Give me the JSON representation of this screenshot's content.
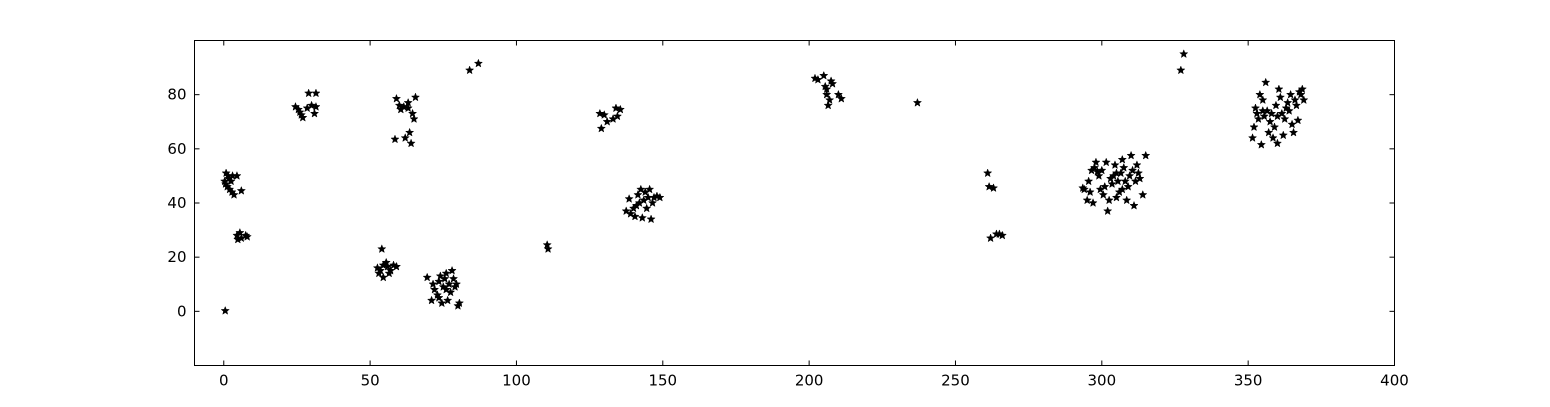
{
  "chart_data": {
    "type": "scatter",
    "title": "",
    "xlabel": "",
    "ylabel": "",
    "xlim": [
      -10,
      400
    ],
    "ylim": [
      -20,
      100
    ],
    "grid": false,
    "marker": "star",
    "marker_color": "#000000",
    "x_ticks": [
      0,
      50,
      100,
      150,
      200,
      250,
      300,
      350,
      400
    ],
    "y_ticks": [
      0,
      20,
      40,
      60,
      80
    ],
    "x_tick_labels": [
      "0",
      "50",
      "100",
      "150",
      "200",
      "250",
      "300",
      "350",
      "400"
    ],
    "y_tick_labels": [
      "0",
      "20",
      "40",
      "60",
      "80"
    ],
    "series": [
      {
        "points": [
          [
            0.5,
            0.2
          ],
          [
            0.8,
            51
          ],
          [
            1.5,
            50
          ],
          [
            0.3,
            48
          ],
          [
            0.6,
            47
          ],
          [
            1.2,
            46
          ],
          [
            2,
            45
          ],
          [
            2.8,
            44
          ],
          [
            3.5,
            43
          ],
          [
            1.8,
            49
          ],
          [
            3,
            50
          ],
          [
            4.5,
            50
          ],
          [
            2.5,
            48
          ],
          [
            6,
            44.5
          ],
          [
            4.5,
            28
          ],
          [
            5.5,
            29
          ],
          [
            6,
            27
          ],
          [
            4.8,
            26.5
          ],
          [
            7.5,
            28
          ],
          [
            8,
            27.5
          ],
          [
            24.5,
            75.5
          ],
          [
            25.5,
            74.5
          ],
          [
            26.5,
            72.5
          ],
          [
            27,
            71.5
          ],
          [
            28.5,
            75
          ],
          [
            29,
            80.5
          ],
          [
            30,
            76
          ],
          [
            31,
            73
          ],
          [
            31.5,
            80.5
          ],
          [
            31.5,
            75.5
          ],
          [
            26,
            73.5
          ],
          [
            52.5,
            16
          ],
          [
            53.5,
            15
          ],
          [
            54,
            23
          ],
          [
            54.5,
            17
          ],
          [
            55.5,
            18
          ],
          [
            56,
            16.5
          ],
          [
            56.5,
            14
          ],
          [
            57,
            15
          ],
          [
            58,
            17
          ],
          [
            59,
            16.5
          ],
          [
            54.5,
            12.5
          ],
          [
            53,
            14
          ],
          [
            58.5,
            63.5
          ],
          [
            59,
            78.5
          ],
          [
            60,
            76
          ],
          [
            60.5,
            74.5
          ],
          [
            61.5,
            75.5
          ],
          [
            62,
            64
          ],
          [
            63,
            77
          ],
          [
            63.5,
            66
          ],
          [
            64,
            62
          ],
          [
            64.5,
            73
          ],
          [
            65,
            71
          ],
          [
            65.5,
            79
          ],
          [
            63,
            75
          ],
          [
            69.5,
            12.5
          ],
          [
            71,
            4
          ],
          [
            71.5,
            10
          ],
          [
            72,
            8
          ],
          [
            73,
            6
          ],
          [
            73.5,
            11
          ],
          [
            74,
            13
          ],
          [
            74.5,
            3
          ],
          [
            75,
            9
          ],
          [
            75.5,
            12
          ],
          [
            76,
            14
          ],
          [
            76.5,
            4
          ],
          [
            77,
            10
          ],
          [
            77.5,
            7
          ],
          [
            78,
            15
          ],
          [
            78.5,
            12
          ],
          [
            79,
            9
          ],
          [
            79.5,
            10
          ],
          [
            80,
            2
          ],
          [
            80.5,
            3
          ],
          [
            73.5,
            5
          ],
          [
            76,
            8
          ],
          [
            84,
            89
          ],
          [
            87,
            91.5
          ],
          [
            110.5,
            24.5
          ],
          [
            110.8,
            23
          ],
          [
            128.5,
            73
          ],
          [
            129,
            67.5
          ],
          [
            130,
            72.5
          ],
          [
            131,
            70
          ],
          [
            133,
            71
          ],
          [
            134,
            75
          ],
          [
            134.5,
            72
          ],
          [
            135.5,
            74.5
          ],
          [
            137.5,
            37
          ],
          [
            138.5,
            41.5
          ],
          [
            139,
            36
          ],
          [
            140,
            38
          ],
          [
            140.5,
            35
          ],
          [
            141,
            39
          ],
          [
            141.5,
            43
          ],
          [
            142,
            40
          ],
          [
            142.5,
            45
          ],
          [
            143,
            34.5
          ],
          [
            143.5,
            41
          ],
          [
            144,
            44
          ],
          [
            144.5,
            38
          ],
          [
            145,
            42
          ],
          [
            145.5,
            45
          ],
          [
            146,
            34
          ],
          [
            146.5,
            40
          ],
          [
            147,
            42
          ],
          [
            148,
            42.5
          ],
          [
            149,
            42
          ],
          [
            202,
            86
          ],
          [
            203,
            85.5
          ],
          [
            205,
            87
          ],
          [
            205.5,
            83
          ],
          [
            206,
            80
          ],
          [
            206.5,
            76
          ],
          [
            207,
            78
          ],
          [
            207.5,
            85
          ],
          [
            208,
            84
          ],
          [
            210,
            80
          ],
          [
            211,
            78.5
          ],
          [
            206,
            82
          ],
          [
            237,
            77
          ],
          [
            261,
            51
          ],
          [
            261.5,
            46
          ],
          [
            263,
            45.5
          ],
          [
            262,
            27
          ],
          [
            264,
            28.5
          ],
          [
            266,
            28
          ],
          [
            265,
            28.5
          ],
          [
            293.5,
            45.5
          ],
          [
            294,
            45
          ],
          [
            295,
            41
          ],
          [
            295.5,
            48
          ],
          [
            296,
            44
          ],
          [
            296.5,
            52
          ],
          [
            297,
            40
          ],
          [
            297.5,
            53
          ],
          [
            298,
            55
          ],
          [
            298.5,
            51.5
          ],
          [
            299,
            50
          ],
          [
            299.5,
            45
          ],
          [
            300,
            52
          ],
          [
            300.5,
            43
          ],
          [
            301,
            46
          ],
          [
            301.5,
            55
          ],
          [
            302,
            37
          ],
          [
            302.5,
            41
          ],
          [
            303,
            49
          ],
          [
            303.5,
            47
          ],
          [
            304,
            50
          ],
          [
            304.5,
            54
          ],
          [
            305,
            42
          ],
          [
            305.5,
            48
          ],
          [
            306,
            44
          ],
          [
            306.5,
            51
          ],
          [
            307,
            56
          ],
          [
            307.5,
            53
          ],
          [
            308,
            48
          ],
          [
            308.5,
            41
          ],
          [
            309,
            46
          ],
          [
            309.5,
            50
          ],
          [
            310,
            57.5
          ],
          [
            310.5,
            52
          ],
          [
            311,
            39
          ],
          [
            311.5,
            48
          ],
          [
            312,
            54
          ],
          [
            312.5,
            51
          ],
          [
            313,
            49
          ],
          [
            314,
            43
          ],
          [
            315,
            57.5
          ],
          [
            305,
            51
          ],
          [
            307,
            45
          ],
          [
            327,
            89
          ],
          [
            328,
            95
          ],
          [
            351.5,
            64
          ],
          [
            352,
            68
          ],
          [
            352.5,
            75
          ],
          [
            353,
            73
          ],
          [
            353.5,
            71
          ],
          [
            354,
            80
          ],
          [
            354.5,
            61.5
          ],
          [
            355,
            78
          ],
          [
            355.5,
            72
          ],
          [
            356,
            84.5
          ],
          [
            356.5,
            74
          ],
          [
            357,
            66
          ],
          [
            357.5,
            70
          ],
          [
            358,
            73
          ],
          [
            358.5,
            64
          ],
          [
            359,
            68
          ],
          [
            359.5,
            76
          ],
          [
            360,
            62
          ],
          [
            360.5,
            82
          ],
          [
            361,
            79
          ],
          [
            361.5,
            73
          ],
          [
            362,
            65
          ],
          [
            362.5,
            71
          ],
          [
            363,
            75
          ],
          [
            363.5,
            77
          ],
          [
            364,
            74
          ],
          [
            364.5,
            80
          ],
          [
            365,
            69
          ],
          [
            365.5,
            66
          ],
          [
            366,
            78
          ],
          [
            366.5,
            76
          ],
          [
            367,
            70.5
          ],
          [
            367.5,
            81
          ],
          [
            368,
            80
          ],
          [
            368.5,
            82
          ],
          [
            369,
            78
          ],
          [
            355,
            74
          ],
          [
            360,
            72
          ]
        ]
      }
    ]
  }
}
